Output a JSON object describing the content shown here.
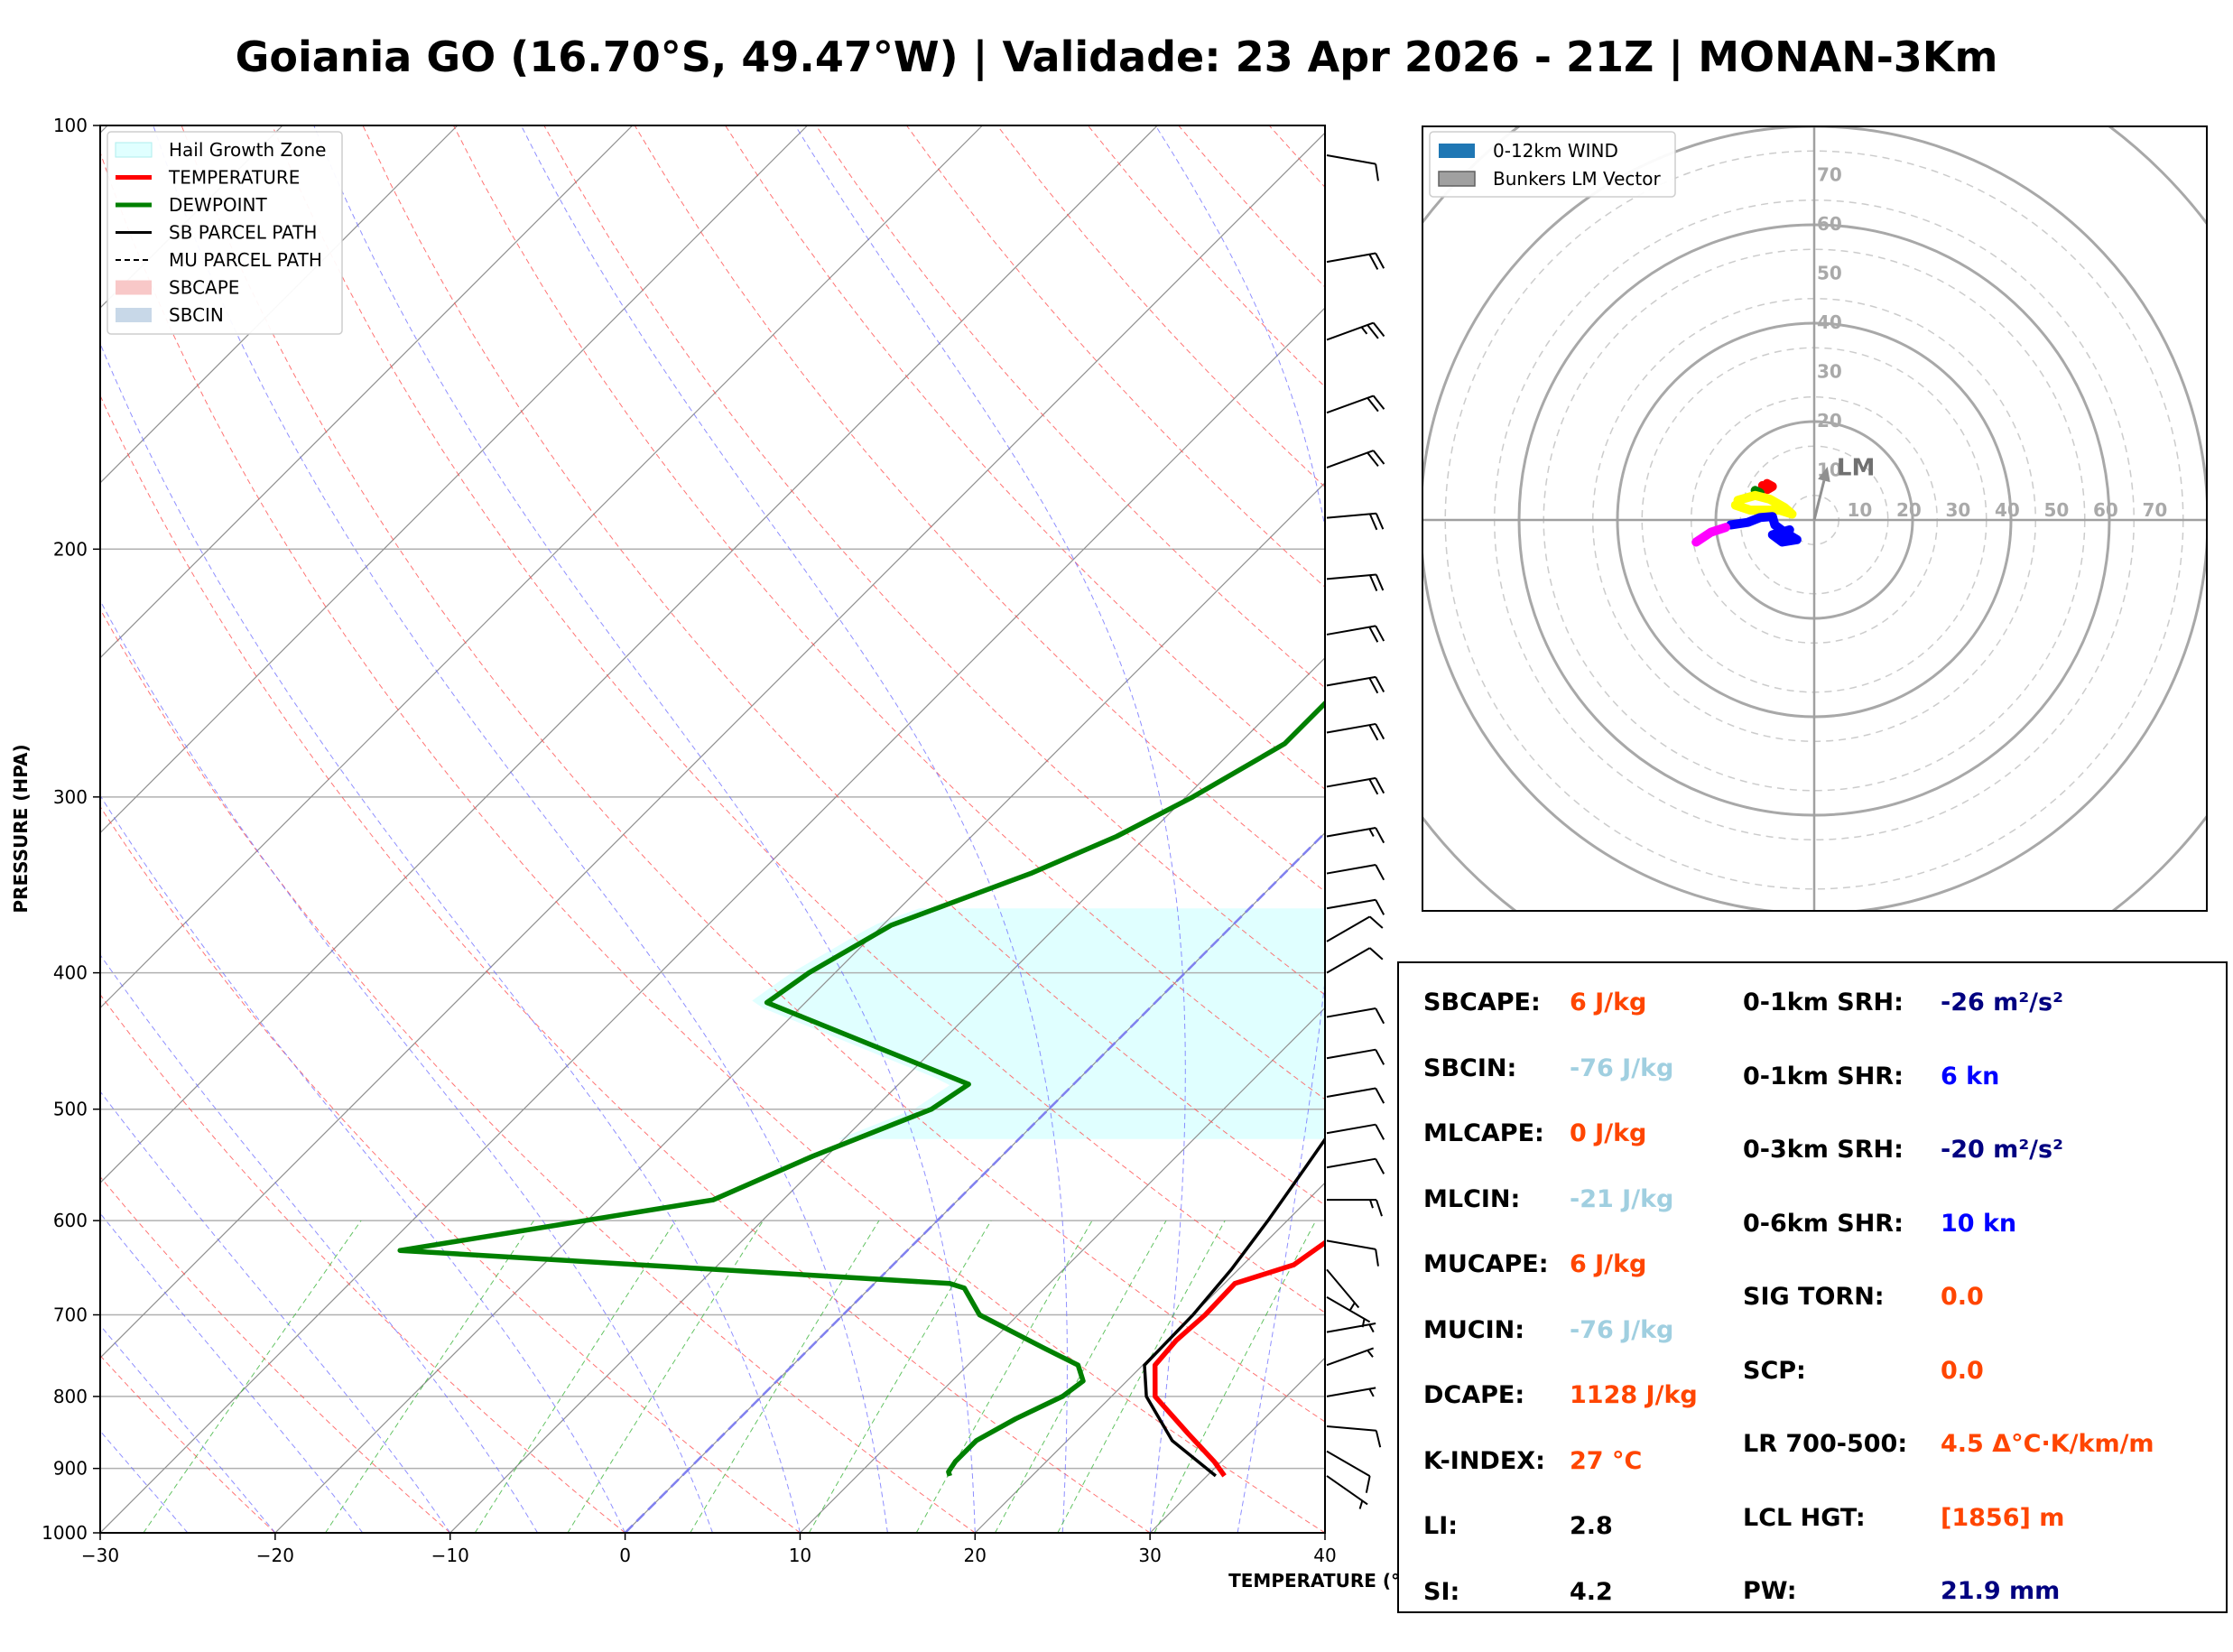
{
  "title": "Goiania GO (16.70°S, 49.47°W) | Validade: 23 Apr 2026 - 21Z | MONAN-3Km",
  "colors": {
    "temperature": "#ff0000",
    "dewpoint": "#008000",
    "parcel": "#000000",
    "hail_zone": "#e0ffff",
    "dry_adiabat": "#ff5050",
    "moist_adiabat": "#6a6aff",
    "mixing_ratio": "#3cb43c",
    "isotherm": "#909090",
    "value_orange": "#ff4500",
    "value_lightblue": "#a0cfe0",
    "value_navy": "#000080",
    "value_blue": "#0000ff"
  },
  "chart_data": [
    {
      "type": "line",
      "subtype": "skew-t log-p",
      "xlabel": "TEMPERATURE (°C)",
      "ylabel": "PRESSURE (HPA)",
      "xlim": [
        -30,
        40
      ],
      "ylim": [
        1000,
        100
      ],
      "y_scale": "log",
      "x_ticks": [
        -30,
        -20,
        -10,
        0,
        10,
        20,
        30,
        40
      ],
      "x_tick_labels": [
        "−30",
        "−20",
        "−10",
        "0",
        "10",
        "20",
        "30",
        "40"
      ],
      "y_ticks": [
        1000,
        900,
        800,
        700,
        600,
        500,
        400,
        300,
        200,
        100
      ],
      "y_tick_labels": [
        "1000",
        "900",
        "800",
        "700",
        "600",
        "500",
        "400",
        "300",
        "200",
        "100"
      ],
      "legend_position": "top-left",
      "legend": [
        {
          "label": "Hail Growth Zone",
          "style": "patch-hail"
        },
        {
          "label": "TEMPERATURE",
          "style": "line-temp"
        },
        {
          "label": "DEWPOINT",
          "style": "line-dew"
        },
        {
          "label": "SB PARCEL PATH",
          "style": "line-parcel"
        },
        {
          "label": "MU PARCEL PATH",
          "style": "dashed-parcel"
        },
        {
          "label": "SBCAPE",
          "style": "patch-cape"
        },
        {
          "label": "SBCIN",
          "style": "patch-cin"
        }
      ],
      "temperature": [
        [
          911,
          31.0
        ],
        [
          905,
          30.6
        ],
        [
          890,
          29.6
        ],
        [
          850,
          26.5
        ],
        [
          800,
          22.5
        ],
        [
          760,
          20.7
        ],
        [
          730,
          20.5
        ],
        [
          700,
          20.7
        ],
        [
          665,
          20.6
        ],
        [
          645,
          22.9
        ],
        [
          610,
          23.7
        ],
        [
          580,
          23.0
        ],
        [
          550,
          22.0
        ],
        [
          500,
          20.8
        ],
        [
          470,
          19.8
        ],
        [
          420,
          19.8
        ],
        [
          400,
          19.5
        ],
        [
          360,
          17.5
        ],
        [
          330,
          16.0
        ],
        [
          300,
          14.0
        ],
        [
          270,
          11.0
        ],
        [
          240,
          7.5
        ],
        [
          215,
          4.0
        ],
        [
          200,
          2.0
        ],
        [
          185,
          -0.5
        ],
        [
          170,
          -3.0
        ],
        [
          160,
          -4.5
        ],
        [
          140,
          -5.5
        ],
        [
          125,
          -3.0
        ],
        [
          115,
          -0.5
        ],
        [
          100,
          5.0
        ]
      ],
      "dewpoint": [
        [
          911,
          15.3
        ],
        [
          905,
          15.0
        ],
        [
          890,
          14.8
        ],
        [
          860,
          14.8
        ],
        [
          830,
          15.8
        ],
        [
          800,
          17.2
        ],
        [
          780,
          17.5
        ],
        [
          760,
          16.3
        ],
        [
          740,
          13.5
        ],
        [
          700,
          7.8
        ],
        [
          670,
          5.4
        ],
        [
          665,
          4.3
        ],
        [
          630,
          -29.0
        ],
        [
          580,
          -14.0
        ],
        [
          540,
          -10.8
        ],
        [
          500,
          -6.7
        ],
        [
          480,
          -6.0
        ],
        [
          420,
          -22.2
        ],
        [
          400,
          -21.5
        ],
        [
          370,
          -19.5
        ],
        [
          340,
          -14.5
        ],
        [
          320,
          -11.7
        ],
        [
          300,
          -9.6
        ],
        [
          275,
          -7.4
        ],
        [
          255,
          -7.4
        ],
        [
          235,
          -7.1
        ],
        [
          200,
          -6.8
        ],
        [
          180,
          -6.9
        ],
        [
          160,
          -7.0
        ],
        [
          140,
          -7.1
        ],
        [
          125,
          -7.3
        ],
        [
          110,
          -7.5
        ],
        [
          100,
          -5.5
        ]
      ],
      "sb_parcel": [
        [
          911,
          30.5
        ],
        [
          860,
          26.0
        ],
        [
          800,
          22.0
        ],
        [
          760,
          20.1
        ],
        [
          700,
          20.0
        ],
        [
          650,
          19.6
        ],
        [
          600,
          18.9
        ],
        [
          550,
          18.0
        ],
        [
          500,
          17.0
        ],
        [
          450,
          15.6
        ],
        [
          400,
          13.5
        ],
        [
          350,
          10.7
        ],
        [
          300,
          6.5
        ],
        [
          260,
          1.8
        ],
        [
          230,
          -1.5
        ],
        [
          200,
          -5.2
        ],
        [
          180,
          -8.3
        ],
        [
          160,
          -11.8
        ],
        [
          140,
          -16.0
        ],
        [
          120,
          -21.5
        ],
        [
          100,
          -28.0
        ]
      ],
      "hail_zone": {
        "p_bottom": 525,
        "p_top": 360
      },
      "wind_barbs": [
        {
          "p": 911,
          "dir": 125,
          "spd": 5
        },
        {
          "p": 875,
          "dir": 120,
          "spd": 10
        },
        {
          "p": 840,
          "dir": 95,
          "spd": 10
        },
        {
          "p": 800,
          "dir": 80,
          "spd": 5
        },
        {
          "p": 760,
          "dir": 70,
          "spd": 5
        },
        {
          "p": 720,
          "dir": 80,
          "spd": 5
        },
        {
          "p": 680,
          "dir": 120,
          "spd": 5
        },
        {
          "p": 650,
          "dir": 140,
          "spd": 5
        },
        {
          "p": 620,
          "dir": 100,
          "spd": 10
        },
        {
          "p": 580,
          "dir": 90,
          "spd": 15
        },
        {
          "p": 550,
          "dir": 80,
          "spd": 10
        },
        {
          "p": 520,
          "dir": 80,
          "spd": 10
        },
        {
          "p": 490,
          "dir": 80,
          "spd": 10
        },
        {
          "p": 460,
          "dir": 80,
          "spd": 10
        },
        {
          "p": 430,
          "dir": 80,
          "spd": 10
        },
        {
          "p": 400,
          "dir": 60,
          "spd": 10
        },
        {
          "p": 380,
          "dir": 60,
          "spd": 10
        },
        {
          "p": 360,
          "dir": 80,
          "spd": 10
        },
        {
          "p": 340,
          "dir": 80,
          "spd": 10
        },
        {
          "p": 320,
          "dir": 80,
          "spd": 15
        },
        {
          "p": 295,
          "dir": 80,
          "spd": 20
        },
        {
          "p": 270,
          "dir": 80,
          "spd": 20
        },
        {
          "p": 250,
          "dir": 80,
          "spd": 20
        },
        {
          "p": 230,
          "dir": 80,
          "spd": 20
        },
        {
          "p": 210,
          "dir": 85,
          "spd": 20
        },
        {
          "p": 190,
          "dir": 85,
          "spd": 20
        },
        {
          "p": 175,
          "dir": 70,
          "spd": 20
        },
        {
          "p": 160,
          "dir": 70,
          "spd": 20
        },
        {
          "p": 142,
          "dir": 70,
          "spd": 25
        },
        {
          "p": 125,
          "dir": 80,
          "spd": 20
        },
        {
          "p": 105,
          "dir": 100,
          "spd": 10
        }
      ]
    },
    {
      "type": "scatter",
      "subtype": "hodograph",
      "rings": [
        10,
        20,
        30,
        40,
        50,
        60,
        70
      ],
      "ring_labels": [
        "10",
        "20",
        "30",
        "40",
        "50",
        "60",
        "70"
      ],
      "x_axis_labels": [
        "10",
        "20",
        "30",
        "40",
        "50",
        "60",
        "70"
      ],
      "legend_position": "top-left",
      "legend": [
        {
          "label": "0-12km WIND",
          "style": "patch-wind"
        },
        {
          "label": "Bunkers LM Vector",
          "style": "patch-lm"
        }
      ],
      "lm_label": "LM",
      "lm_vector": [
        2,
        8
      ],
      "segments": [
        {
          "color": "#ff0000",
          "points": [
            [
              -10.5,
              7.0
            ],
            [
              -9.5,
              6.2
            ],
            [
              -8.5,
              6.8
            ],
            [
              -9.6,
              7.4
            ]
          ]
        },
        {
          "color": "#008000",
          "points": [
            [
              -12.0,
              6.0
            ],
            [
              -11.0,
              5.5
            ]
          ]
        },
        {
          "color": "#ffff00",
          "points": [
            [
              -15.5,
              4.0
            ],
            [
              -12.0,
              5.0
            ],
            [
              -9.0,
              4.2
            ],
            [
              -6.0,
              2.5
            ],
            [
              -4.5,
              1.2
            ],
            [
              -7.0,
              2.0
            ],
            [
              -13.0,
              2.0
            ],
            [
              -16.0,
              3.0
            ]
          ]
        },
        {
          "color": "#0000ff",
          "points": [
            [
              -17.0,
              -1.0
            ],
            [
              -13.5,
              -0.5
            ],
            [
              -11.0,
              0.5
            ],
            [
              -8.5,
              0.7
            ],
            [
              -8.0,
              -1.0
            ],
            [
              -6.0,
              -2.5
            ],
            [
              -3.5,
              -4.0
            ],
            [
              -6.5,
              -4.5
            ],
            [
              -8.5,
              -3.0
            ],
            [
              -5.0,
              -2.0
            ],
            [
              -7.0,
              -3.0
            ]
          ]
        },
        {
          "color": "#ff00ff",
          "points": [
            [
              -24.0,
              -4.5
            ],
            [
              -21.0,
              -2.5
            ],
            [
              -18.0,
              -1.5
            ]
          ]
        }
      ]
    }
  ],
  "params": {
    "left": [
      {
        "label": "SBCAPE:",
        "value": "6 J/kg",
        "color": "#ff4500"
      },
      {
        "label": "SBCIN:",
        "value": "-76 J/kg",
        "color": "#a0cfe0"
      },
      {
        "label": "MLCAPE:",
        "value": "0 J/kg",
        "color": "#ff4500"
      },
      {
        "label": "MLCIN:",
        "value": "-21 J/kg",
        "color": "#a0cfe0"
      },
      {
        "label": "MUCAPE:",
        "value": "6 J/kg",
        "color": "#ff4500"
      },
      {
        "label": "MUCIN:",
        "value": "-76 J/kg",
        "color": "#a0cfe0"
      },
      {
        "label": "DCAPE:",
        "value": "1128 J/kg",
        "color": "#ff4500"
      },
      {
        "label": "K-INDEX:",
        "value": "27 °C",
        "color": "#ff4500"
      },
      {
        "label": "LI:",
        "value": "2.8",
        "color": "#000000"
      },
      {
        "label": "SI:",
        "value": "4.2",
        "color": "#000000"
      }
    ],
    "right": [
      {
        "label": "0-1km SRH:",
        "value": "-26 m²/s²",
        "color": "#000080"
      },
      {
        "label": "0-1km SHR:",
        "value": "6 kn",
        "color": "#0000ff"
      },
      {
        "label": "0-3km SRH:",
        "value": "-20 m²/s²",
        "color": "#000080"
      },
      {
        "label": "0-6km SHR:",
        "value": "10 kn",
        "color": "#0000ff"
      },
      {
        "label": "SIG TORN:",
        "value": "0.0",
        "color": "#ff4500"
      },
      {
        "label": "SCP:",
        "value": "0.0",
        "color": "#ff4500"
      },
      {
        "label": "LR 700-500:",
        "value": "4.5 Δ°C·K/km/m",
        "color": "#ff4500"
      },
      {
        "label": "LCL HGT:",
        "value": "[1856] m",
        "color": "#ff4500"
      },
      {
        "label": "PW:",
        "value": "21.9 mm",
        "color": "#000080"
      }
    ]
  }
}
